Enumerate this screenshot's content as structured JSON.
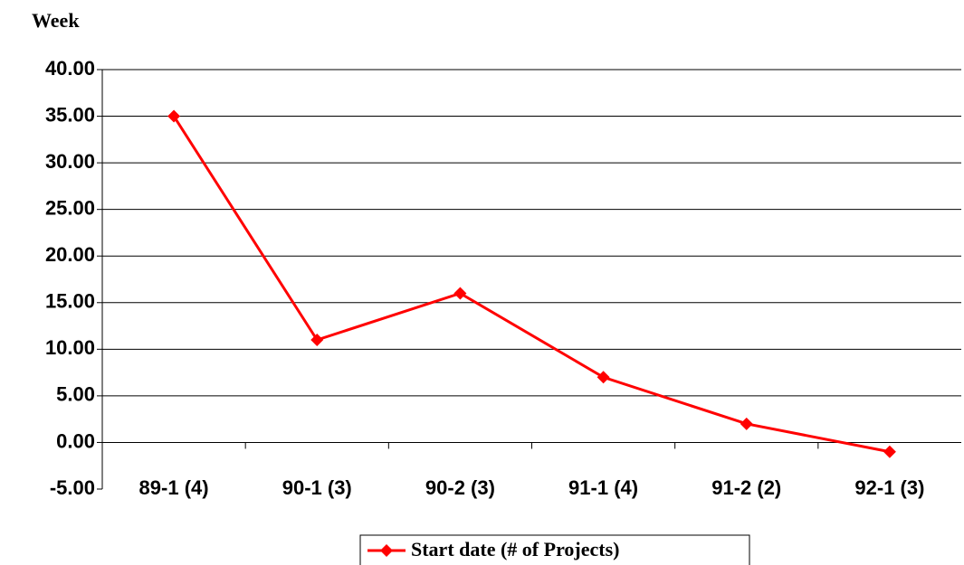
{
  "chart_data": {
    "type": "line",
    "y_axis_label": "Week",
    "categories": [
      "89-1 (4)",
      "90-1 (3)",
      "90-2 (3)",
      "91-1 (4)",
      "91-2 (2)",
      "92-1 (3)"
    ],
    "series": [
      {
        "name": "Start date (# of Projects)",
        "color": "#ff0000",
        "values": [
          35,
          11,
          16,
          7,
          2,
          -1
        ]
      }
    ],
    "ylim": [
      -5,
      40
    ],
    "yticks": [
      {
        "value": -5,
        "label": "-5.00"
      },
      {
        "value": 0,
        "label": "0.00"
      },
      {
        "value": 5,
        "label": "5.00"
      },
      {
        "value": 10,
        "label": "10.00"
      },
      {
        "value": 15,
        "label": "15.00"
      },
      {
        "value": 20,
        "label": "20.00"
      },
      {
        "value": 25,
        "label": "25.00"
      },
      {
        "value": 30,
        "label": "30.00"
      },
      {
        "value": 35,
        "label": "35.00"
      },
      {
        "value": 40,
        "label": "40.00"
      }
    ],
    "grid": true,
    "legend": "bottom"
  }
}
